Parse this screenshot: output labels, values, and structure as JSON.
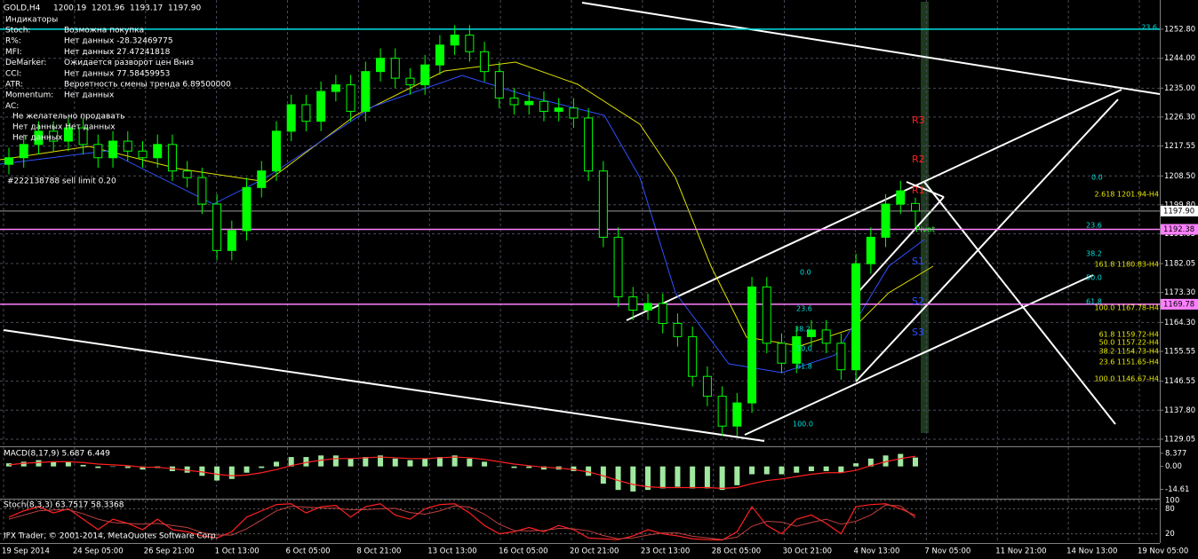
{
  "chart_data": {
    "type": "candlestick",
    "title": "GOLD,H4",
    "quote": [
      1200.19,
      1201.96,
      1193.17,
      {
        "value": 1197.9,
        "label": "1197.90"
      }
    ],
    "indicators_title": "Индикаторы",
    "indicators": [
      {
        "name": "Stoch:",
        "text": "Возможна покупка"
      },
      {
        "name": "R%:",
        "text": "Нет данных -28.32469775"
      },
      {
        "name": "MFI:",
        "text": "Нет данных 27.47241818"
      },
      {
        "name": "DeMarker:",
        "text": "Ожидается разворот цен Вниз"
      },
      {
        "name": "CCI:",
        "text": "Нет данных 77.58459953"
      },
      {
        "name": "ATR:",
        "text": "Вероятность смены тренда 6.89500000"
      },
      {
        "name": "Momentum:",
        "text": "Нет данных"
      },
      {
        "name": "AC:"
      }
    ],
    "notes": [
      "Не желательно продавать",
      "Нет данных Нет данных",
      "Нет данных"
    ],
    "order": "#222138788 sell limit 0.20",
    "footer": "IFX Trader, © 2001-2014, MetaQuotes Software Corp.",
    "x_labels": [
      "19 Sep 2014",
      "24 Sep 05:00",
      "26 Sep 21:00",
      "1 Oct 13:00",
      "6 Oct 05:00",
      "8 Oct 21:00",
      "13 Oct 13:00",
      "16 Oct 05:00",
      "20 Oct 21:00",
      "23 Oct 13:00",
      "28 Oct 05:00",
      "30 Oct 21:00",
      "4 Nov 13:00",
      "7 Nov 05:00",
      "11 Nov 21:00",
      "14 Nov 13:00",
      "19 Nov 05:00"
    ],
    "open": [
      1212,
      1214,
      1218,
      1222,
      1219,
      1223,
      1218,
      1214,
      1219,
      1216,
      1214,
      1218,
      1210,
      1208,
      1200,
      1186,
      1192,
      1205,
      1210,
      1222,
      1230,
      1225,
      1234,
      1236,
      1228,
      1240,
      1244,
      1238,
      1236,
      1242,
      1248,
      1251,
      1246,
      1240,
      1232,
      1230,
      1231,
      1228,
      1229,
      1226,
      1210,
      1190,
      1172,
      1168,
      1170,
      1164,
      1160,
      1148,
      1142,
      1133,
      1140,
      1175,
      1158,
      1152,
      1160,
      1162,
      1158,
      1150,
      1182,
      1190,
      1200,
      1200.19
    ],
    "high": [
      1217,
      1221,
      1225,
      1225,
      1226,
      1226,
      1221,
      1222,
      1222,
      1219,
      1221,
      1221,
      1213,
      1211,
      1203,
      1195,
      1208,
      1213,
      1225,
      1233,
      1233,
      1237,
      1239,
      1239,
      1243,
      1247,
      1247,
      1241,
      1245,
      1251,
      1254,
      1254,
      1249,
      1243,
      1235,
      1234,
      1234,
      1232,
      1232,
      1229,
      1213,
      1193,
      1175,
      1173,
      1173,
      1167,
      1163,
      1151,
      1145,
      1143,
      1178,
      1178,
      1161,
      1163,
      1165,
      1165,
      1161,
      1185,
      1193,
      1203,
      1207,
      1201.96
    ],
    "low": [
      1209,
      1211,
      1215,
      1216,
      1216,
      1215,
      1211,
      1211,
      1213,
      1211,
      1211,
      1207,
      1205,
      1197,
      1183,
      1183,
      1189,
      1202,
      1207,
      1219,
      1222,
      1222,
      1231,
      1225,
      1225,
      1237,
      1235,
      1233,
      1233,
      1239,
      1245,
      1243,
      1237,
      1229,
      1227,
      1227,
      1225,
      1225,
      1223,
      1207,
      1187,
      1169,
      1165,
      1165,
      1161,
      1157,
      1145,
      1139,
      1130,
      1130,
      1137,
      1155,
      1149,
      1149,
      1157,
      1155,
      1147,
      1147,
      1179,
      1187,
      1197,
      1193.17
    ],
    "close": [
      1214,
      1218,
      1222,
      1219,
      1223,
      1218,
      1214,
      1219,
      1216,
      1214,
      1218,
      1210,
      1208,
      1200,
      1186,
      1192,
      1205,
      1210,
      1222,
      1230,
      1225,
      1234,
      1236,
      1228,
      1240,
      1244,
      1238,
      1236,
      1242,
      1248,
      1251,
      1246,
      1240,
      1232,
      1230,
      1231,
      1228,
      1229,
      1226,
      1210,
      1190,
      1172,
      1168,
      1170,
      1164,
      1160,
      1148,
      1142,
      1133,
      1140,
      1175,
      1158,
      1152,
      1160,
      1162,
      1158,
      1150,
      1182,
      1190,
      1200,
      1204,
      1197.9
    ],
    "up_color": "#00ff00",
    "down_color": "#000000",
    "wick_color": "#00ff00",
    "ylim": [
      1126.9,
      1261.6
    ],
    "yticks": [
      {
        "value": 1252.8,
        "label": "1252.80"
      },
      {
        "value": 1244,
        "label": "1244.00"
      },
      {
        "value": 1235,
        "label": "1235.00"
      },
      {
        "value": 1226.3,
        "label": "1226.30"
      },
      {
        "value": 1217.55,
        "label": "1217.55"
      },
      {
        "value": 1208.5,
        "label": "1208.50"
      },
      {
        "value": 1199.8,
        "label": "1199.80"
      },
      {
        "value": 1191.05,
        "label": "1191.05"
      },
      {
        "value": 1182.05,
        "label": "1182.05"
      },
      {
        "value": 1173.3,
        "label": "1173.30"
      },
      {
        "value": 1164.3,
        "label": "1164.30"
      },
      {
        "value": 1155.55,
        "label": "1155.55"
      },
      {
        "value": 1146.55,
        "label": "1146.55"
      },
      {
        "value": 1137.8,
        "label": "1137.80"
      },
      {
        "value": 1129.05,
        "label": "1129.05"
      }
    ],
    "grid": true,
    "levels": [
      {
        "value": 1252.8,
        "color": "#00e0e0"
      },
      {
        "value": 1192.38,
        "color": "#ff80ff",
        "tag": true
      },
      {
        "value": 1169.78,
        "color": "#ff80ff",
        "tag": true
      }
    ],
    "fib_labels": [
      "23.6",
      "0.0",
      "2.618 1201.94-H4",
      "23.6",
      "38.2",
      "161.8 1180.83-H4",
      "50.0",
      "61.8",
      "100.0 1167.78-H4",
      "61.8 1159.72-H4",
      "50.0 1157.22-H4",
      "38.2 1154.73-H4",
      "23.6 1151.65-H4",
      "100.0 1146.67-H4",
      "0.0",
      "23.6",
      "38.2",
      "50.0",
      "61.8",
      "100.0"
    ],
    "pivots": [
      "R3",
      "R2",
      "R1",
      "Pivot",
      "S1",
      "S2",
      "S3"
    ],
    "macd": {
      "label": "MACD(8,17,9) 5.687 6.449",
      "color": "#a0e8a0",
      "signal_color": "#ff2020",
      "histogram": [
        2,
        3,
        4,
        3,
        3,
        1,
        -1,
        0,
        -1,
        -2,
        -1,
        -3,
        -4,
        -6,
        -9,
        -8,
        -4,
        -1,
        3,
        6,
        6,
        7,
        7,
        5,
        6,
        7,
        5,
        4,
        5,
        6,
        7,
        5,
        3,
        0,
        -1,
        -1,
        -2,
        -2,
        -3,
        -6,
        -11,
        -15,
        -16,
        -15,
        -14,
        -13,
        -14,
        -14,
        -15,
        -12,
        -5,
        -5,
        -5,
        -4,
        -3,
        -3,
        -4,
        2,
        5,
        7,
        8,
        5.687
      ],
      "signal": [
        1,
        2,
        2.5,
        3,
        3,
        2.5,
        1.5,
        1,
        0.5,
        -0.5,
        -0.5,
        -1.5,
        -2.5,
        -3.5,
        -5,
        -6,
        -5.5,
        -4,
        -2,
        0.5,
        2.5,
        4,
        5,
        5,
        5.5,
        6,
        5.5,
        5,
        5,
        5.5,
        6,
        5.5,
        4.5,
        3,
        1.5,
        0.5,
        -0.5,
        -1,
        -2,
        -3.5,
        -6,
        -9,
        -11.5,
        -13,
        -13.5,
        -13.5,
        -13.5,
        -13.5,
        -14,
        -13.5,
        -11,
        -9,
        -8,
        -6.5,
        -5,
        -4,
        -4,
        -2.5,
        0.5,
        3,
        5,
        6.449
      ],
      "ylim": [
        -20,
        11.7
      ],
      "yticks": [
        {
          "value": 8.377,
          "label": "8.377"
        },
        {
          "value": 0,
          "label": "0.00"
        },
        -14.61
      ]
    },
    "stoch": {
      "label": "Stoch(8,3,3) 63.7517 58.3368",
      "color": "#ff2020",
      "signal_color": "#c04040",
      "main": [
        60,
        75,
        85,
        70,
        80,
        55,
        30,
        55,
        45,
        30,
        55,
        30,
        25,
        15,
        10,
        25,
        60,
        75,
        90,
        92,
        70,
        85,
        88,
        60,
        85,
        92,
        65,
        55,
        80,
        90,
        92,
        70,
        40,
        20,
        25,
        35,
        25,
        40,
        30,
        10,
        8,
        6,
        15,
        30,
        20,
        15,
        8,
        6,
        5,
        25,
        85,
        40,
        20,
        55,
        65,
        45,
        20,
        85,
        90,
        92,
        80,
        63.7517
      ],
      "signal": [
        55,
        65,
        75,
        77,
        78,
        68,
        55,
        47,
        45,
        43,
        45,
        40,
        35,
        23,
        17,
        17,
        32,
        53,
        75,
        86,
        84,
        82,
        81,
        78,
        78,
        80,
        81,
        71,
        67,
        75,
        87,
        84,
        67,
        43,
        28,
        27,
        28,
        33,
        32,
        27,
        16,
        8,
        10,
        17,
        22,
        22,
        14,
        10,
        6,
        12,
        38,
        50,
        48,
        38,
        47,
        55,
        43,
        50,
        65,
        89,
        87,
        58.3368
      ],
      "ylim": [
        0,
        100
      ],
      "yticks": [
        100,
        80,
        20
      ]
    }
  }
}
